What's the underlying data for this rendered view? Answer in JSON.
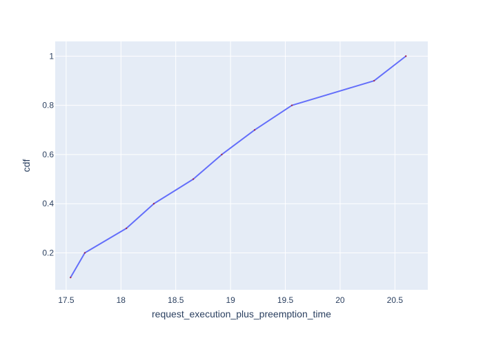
{
  "chart_data": {
    "type": "line",
    "title": "",
    "xlabel": "request_execution_plus_preemption_time",
    "ylabel": "cdf",
    "xlim": [
      17.4,
      20.8
    ],
    "ylim": [
      0.05,
      1.06
    ],
    "grid": true,
    "x_ticks": [
      17.5,
      18,
      18.5,
      19,
      19.5,
      20,
      20.5
    ],
    "x_tick_labels": [
      "17.5",
      "18",
      "18.5",
      "19",
      "19.5",
      "20",
      "20.5"
    ],
    "y_ticks": [
      0.2,
      0.4,
      0.6,
      0.8,
      1
    ],
    "y_tick_labels": [
      "0.2",
      "0.4",
      "0.6",
      "0.8",
      "1"
    ],
    "series": [
      {
        "x": [
          17.54,
          17.67,
          18.05,
          18.3,
          18.66,
          18.92,
          19.22,
          19.56,
          20.31,
          20.6
        ],
        "y": [
          0.1,
          0.2,
          0.3,
          0.4,
          0.5,
          0.6,
          0.7,
          0.8,
          0.9,
          1.0
        ],
        "color": "#636efa",
        "marker_color": "#ab2b4f"
      }
    ]
  },
  "colors": {
    "plot_background": "#e5ecf6",
    "grid": "#ffffff",
    "text": "#2a3f5f"
  }
}
